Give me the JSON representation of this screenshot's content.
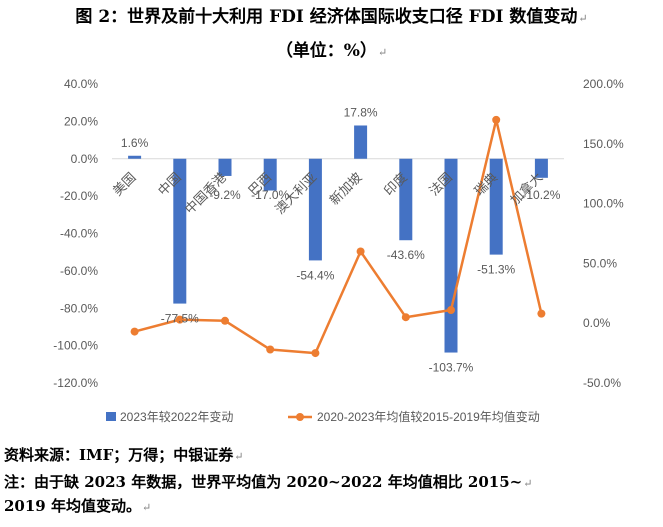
{
  "title_line1": "图 2：世界及前十大利用 FDI 经济体国际收支口径 FDI 数值变动",
  "title_line2": "（单位：%）",
  "source": "资料来源：IMF；万得；中银证券",
  "note_line1": "注：由于缺 2023 年数据，世界平均值为 2020~2022 年均值相比 2015~",
  "note_line2": "2019 年均值变动。",
  "colors": {
    "bar": "#4472c4",
    "line": "#ed7d31",
    "axis_text": "#595959"
  },
  "chart_data": {
    "type": "bar",
    "title": "",
    "categories": [
      "美国",
      "中国",
      "中国香港",
      "巴西",
      "澳大利亚",
      "新加坡",
      "印度",
      "法国",
      "瑞典",
      "加拿大"
    ],
    "series": [
      {
        "name": "2023年较2022年变动",
        "type": "bar",
        "axis": "left",
        "values": [
          1.6,
          -77.5,
          -9.2,
          -17.0,
          -54.4,
          17.8,
          -43.6,
          -103.7,
          -51.3,
          -10.2
        ],
        "labels": [
          "1.6%",
          "-77.5%",
          "-9.2%",
          "-17.0%",
          "-54.4%",
          "17.8%",
          "-43.6%",
          "-103.7%",
          "-51.3%",
          "-10.2%"
        ]
      },
      {
        "name": "2020-2023年均值较2015-2019年均值变动",
        "type": "line",
        "axis": "right",
        "values": [
          -7,
          3,
          2,
          -22,
          -25,
          60,
          5,
          11,
          170,
          8
        ]
      }
    ],
    "y_left": {
      "min": -120,
      "max": 40,
      "step": 20,
      "ticks": [
        "40.0%",
        "20.0%",
        "0.0%",
        "-20.0%",
        "-40.0%",
        "-60.0%",
        "-80.0%",
        "-100.0%",
        "-120.0%"
      ]
    },
    "y_right": {
      "min": -50,
      "max": 200,
      "step": 50,
      "ticks": [
        "200.0%",
        "150.0%",
        "100.0%",
        "50.0%",
        "0.0%",
        "-50.0%"
      ]
    },
    "grid": false,
    "legend_position": "bottom"
  }
}
